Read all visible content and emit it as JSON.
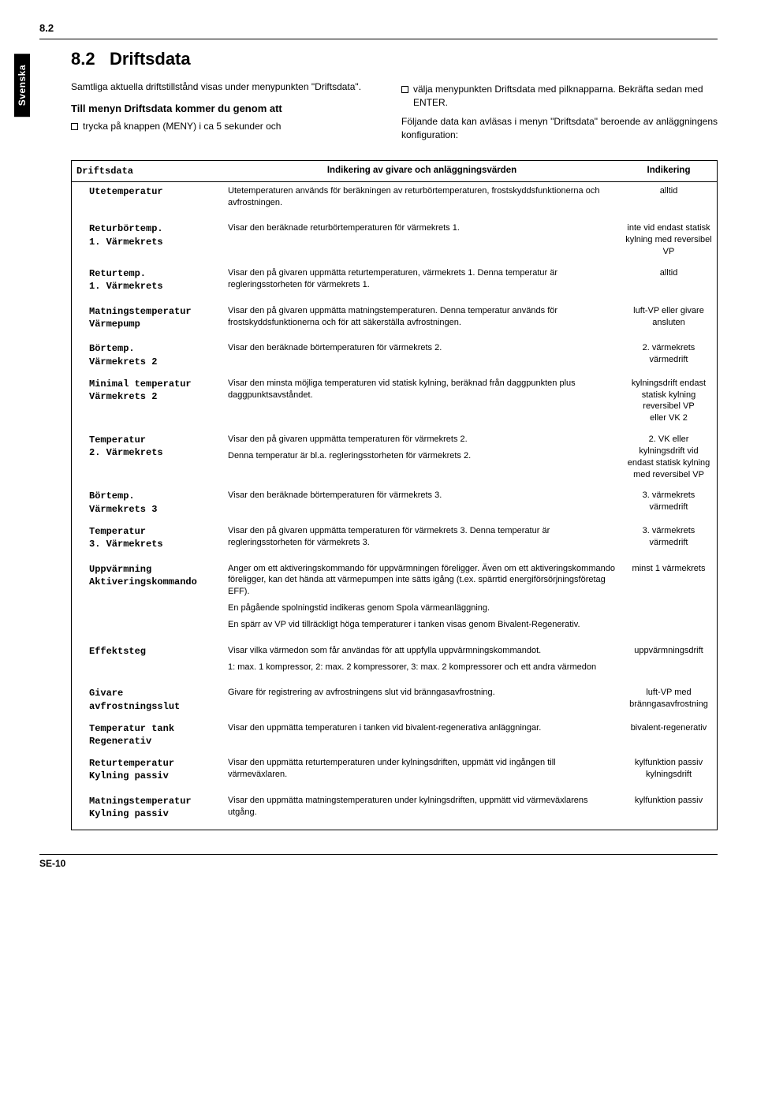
{
  "header": {
    "section_number": "8.2"
  },
  "side_tab": "Svenska",
  "title": {
    "number": "8.2",
    "text": "Driftsdata"
  },
  "intro": {
    "left_para": "Samtliga aktuella driftstillstånd visas under menypunkten \"Driftsdata\".",
    "left_sub": "Till menyn Driftsdata kommer du genom att",
    "left_bullet": "trycka på knappen (MENY) i ca 5 sekunder och",
    "right_bullet": "välja menypunkten Driftsdata med pilknapparna. Bekräfta sedan med ENTER.",
    "right_para": "Följande data kan avläsas i menyn \"Driftsdata\" beroende av anläggningens konfiguration:"
  },
  "table": {
    "head": {
      "c1": "Driftsdata",
      "c2": "Indikering av givare och anläggningsvärden",
      "c3": "Indikering"
    },
    "rows": [
      {
        "c1": "Utetemperatur",
        "c2": [
          "Utetemperaturen används för beräkningen av returbörtemperaturen, frostskyddsfunktionerna och avfrostningen."
        ],
        "c3": "alltid"
      },
      {
        "c1": "Returbörtemp.\n1. Värmekrets",
        "c2": [
          "Visar den beräknade returbörtemperaturen för värmekrets 1."
        ],
        "c3": "inte vid endast statisk kylning med reversibel VP"
      },
      {
        "c1": "Returtemp.\n1. Värmekrets",
        "c2": [
          "Visar den på givaren uppmätta returtemperaturen, värmekrets 1. Denna temperatur är regleringsstorheten för värmekrets 1."
        ],
        "c3": "alltid"
      },
      {
        "c1": "Matningstemperatur\nVärmepump",
        "c2": [
          "Visar den på givaren uppmätta matningstemperaturen. Denna temperatur används för frostskyddsfunktionerna och för att säkerställa avfrostningen."
        ],
        "c3": "luft-VP eller givare ansluten"
      },
      {
        "c1": "Börtemp.\nVärmekrets 2",
        "c2": [
          "Visar den beräknade börtemperaturen för värmekrets 2."
        ],
        "c3": "2. värmekrets värmedrift"
      },
      {
        "c1": "Minimal temperatur\nVärmekrets 2",
        "c2": [
          "Visar den minsta möjliga temperaturen vid statisk kylning, beräknad från daggpunkten plus daggpunktsavståndet."
        ],
        "c3": "kylningsdrift endast statisk kylning reversibel VP\neller VK 2"
      },
      {
        "c1": "Temperatur\n2. Värmekrets",
        "c2": [
          "Visar den på givaren uppmätta temperaturen för värmekrets 2.",
          "Denna temperatur är bl.a. regleringsstorheten för värmekrets 2."
        ],
        "c3": "2. VK eller kylningsdrift vid endast statisk kylning med reversibel VP"
      },
      {
        "c1": "Börtemp.\nVärmekrets 3",
        "c2": [
          "Visar den beräknade börtemperaturen för värmekrets 3."
        ],
        "c3": "3. värmekrets värmedrift"
      },
      {
        "c1": "Temperatur\n3. Värmekrets",
        "c2": [
          "Visar den på givaren uppmätta temperaturen för värmekrets 3. Denna temperatur är regleringsstorheten för värmekrets 3."
        ],
        "c3": "3. värmekrets värmedrift"
      },
      {
        "c1": "Uppvärmning\nAktiveringskommando",
        "c2": [
          "Anger om ett aktiveringskommando för uppvärmningen föreligger. Även om ett aktiveringskommando föreligger, kan det hända att värmepumpen inte sätts igång (t.ex. spärrtid energiförsörjningsföretag EFF).",
          "En pågående spolningstid indikeras genom Spola värmeanläggning.",
          "En spärr av VP vid tillräckligt höga temperaturer i tanken visas genom Bivalent-Regenerativ."
        ],
        "c3": "minst 1 värmekrets"
      },
      {
        "c1": "Effektsteg",
        "c2": [
          "Visar vilka värmedon som får användas för att uppfylla uppvärmningskommandot.",
          "1: max. 1 kompressor, 2: max. 2 kompressorer, 3: max. 2 kompressorer och ett andra värmedon"
        ],
        "c3": "uppvärmningsdrift"
      },
      {
        "c1": "Givare avfrostningsslut",
        "c2": [
          "Givare för registrering av avfrostningens slut vid bränngasavfrostning."
        ],
        "c3": "luft-VP med bränngasavfrostning"
      },
      {
        "c1": "Temperatur tank\nRegenerativ",
        "c2": [
          "Visar den uppmätta temperaturen i tanken vid bivalent-regenerativa anläggningar."
        ],
        "c3": "bivalent-regenerativ"
      },
      {
        "c1": "Returtemperatur\nKylning passiv",
        "c2": [
          "Visar den uppmätta returtemperaturen under kylningsdriften, uppmätt vid ingången till värmeväxlaren."
        ],
        "c3": "kylfunktion passiv kylningsdrift"
      },
      {
        "c1": "Matningstemperatur\nKylning passiv",
        "c2": [
          "Visar den uppmätta matningstemperaturen under kylningsdriften, uppmätt vid värmeväxlarens utgång."
        ],
        "c3": "kylfunktion passiv"
      }
    ]
  },
  "footer": {
    "page": "SE-10"
  }
}
